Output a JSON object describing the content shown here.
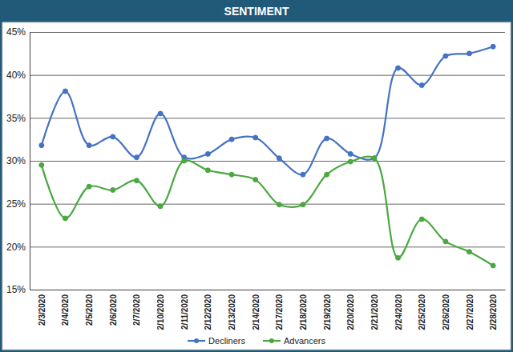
{
  "chart_data": {
    "type": "line",
    "title": "SENTIMENT",
    "categories": [
      "2/3/2020",
      "2/4/2020",
      "2/5/2020",
      "2/6/2020",
      "2/7/2020",
      "2/10/2020",
      "2/11/2020",
      "2/12/2020",
      "2/13/2020",
      "2/14/2020",
      "2/17/2020",
      "2/18/2020",
      "2/19/2020",
      "2/20/2020",
      "2/21/2020",
      "2/24/2020",
      "2/25/2020",
      "2/26/2020",
      "2/27/2020",
      "2/28/2020"
    ],
    "series": [
      {
        "name": "Decliners",
        "color": "#4472c4",
        "marker": "circle",
        "values": [
          31.8,
          38.1,
          31.8,
          32.8,
          30.4,
          35.5,
          30.4,
          30.8,
          32.5,
          32.7,
          30.3,
          28.4,
          32.6,
          30.8,
          30.3,
          40.8,
          38.8,
          42.2,
          42.5,
          43.3
        ]
      },
      {
        "name": "Advancers",
        "color": "#4aa83f",
        "marker": "circle",
        "values": [
          29.5,
          23.3,
          27.0,
          26.6,
          27.7,
          24.7,
          30.0,
          28.9,
          28.4,
          27.8,
          24.9,
          24.9,
          28.4,
          29.9,
          30.3,
          18.7,
          23.2,
          20.6,
          19.4,
          17.8
        ]
      }
    ],
    "ylim": [
      15,
      45
    ],
    "yticks": [
      {
        "value": 15,
        "label": "15%"
      },
      {
        "value": 20,
        "label": "20%"
      },
      {
        "value": 25,
        "label": "25%"
      },
      {
        "value": 30,
        "label": "30%"
      },
      {
        "value": 35,
        "label": "35%"
      },
      {
        "value": 40,
        "label": "40%"
      },
      {
        "value": 45,
        "label": "45%"
      }
    ],
    "grid": true,
    "legend": "bottom"
  }
}
